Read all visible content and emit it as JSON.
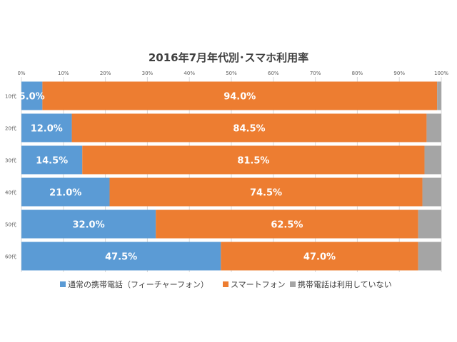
{
  "chart_data": {
    "type": "bar",
    "orientation": "horizontal",
    "stacked": true,
    "title": "2016年7月年代別･スマホ利用率",
    "categories": [
      "10代",
      "20代",
      "30代",
      "40代",
      "50代",
      "60代"
    ],
    "x_ticks": [
      "0%",
      "10%",
      "20%",
      "30%",
      "40%",
      "50%",
      "60%",
      "70%",
      "80%",
      "90%",
      "100%"
    ],
    "xlim": [
      0,
      100
    ],
    "grid": true,
    "legend_position": "bottom",
    "series": [
      {
        "name": "通常の携帯電話（フィーチャーフォン）",
        "color": "#5b9bd5",
        "values": [
          5.0,
          12.0,
          14.5,
          21.0,
          32.0,
          47.5
        ],
        "labels": [
          "5.0%",
          "12.0%",
          "14.5%",
          "21.0%",
          "32.0%",
          "47.5%"
        ]
      },
      {
        "name": "スマートフォン",
        "color": "#ed7d31",
        "values": [
          94.0,
          84.5,
          81.5,
          74.5,
          62.5,
          47.0
        ],
        "labels": [
          "94.0%",
          "84.5%",
          "81.5%",
          "74.5%",
          "62.5%",
          "47.0%"
        ]
      },
      {
        "name": "携帯電話は利用していない",
        "color": "#a5a5a5",
        "values": [
          1.0,
          3.5,
          4.0,
          4.5,
          5.5,
          5.5
        ],
        "labels": [
          "",
          "",
          "",
          "",
          "",
          ""
        ]
      }
    ]
  }
}
